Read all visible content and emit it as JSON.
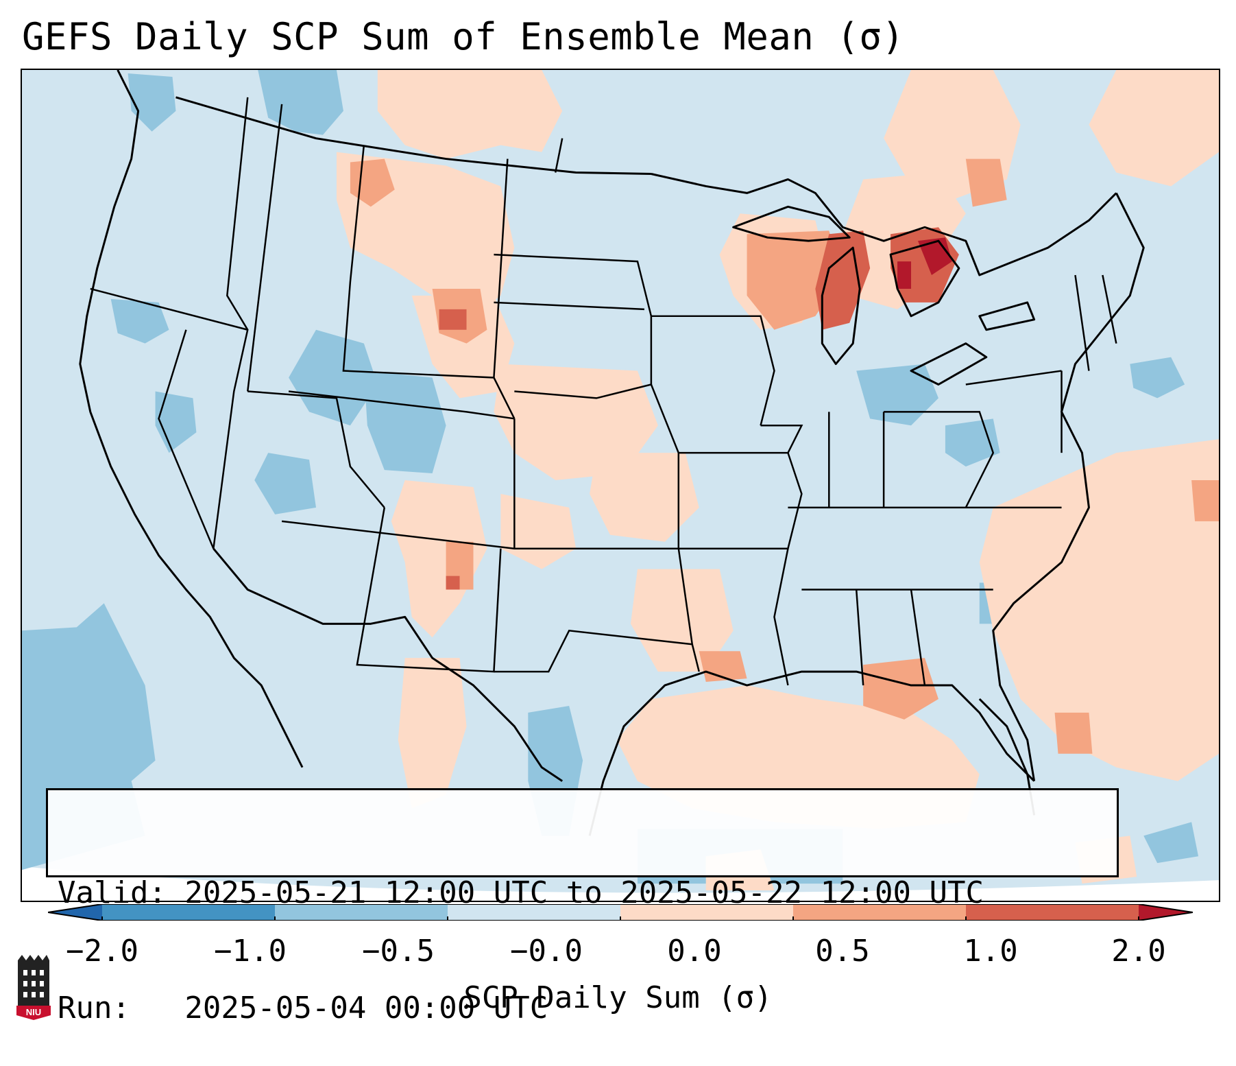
{
  "title": "GEFS Daily SCP Sum of Ensemble Mean (σ)",
  "info": {
    "valid_line": "Valid: 2025-05-21 12:00 UTC to 2025-05-22 12:00 UTC",
    "run_line": "Run:   2025-05-04 00:00 UTC"
  },
  "colorbar": {
    "label": "SCP Daily Sum (σ)",
    "ticks": [
      "−2.0",
      "−1.0",
      "−0.5",
      "−0.0",
      "0.0",
      "0.5",
      "1.0",
      "2.0"
    ],
    "bin_colors": [
      "#2166ac",
      "#4393c3",
      "#92c5de",
      "#d1e5f0",
      "#fddbc7",
      "#f4a582",
      "#d6604d",
      "#b2182b"
    ],
    "extend": "both"
  },
  "map": {
    "region": "Contiguous United States",
    "background_color": "#d1e5f0"
  },
  "logo": {
    "text": "NIU"
  }
}
